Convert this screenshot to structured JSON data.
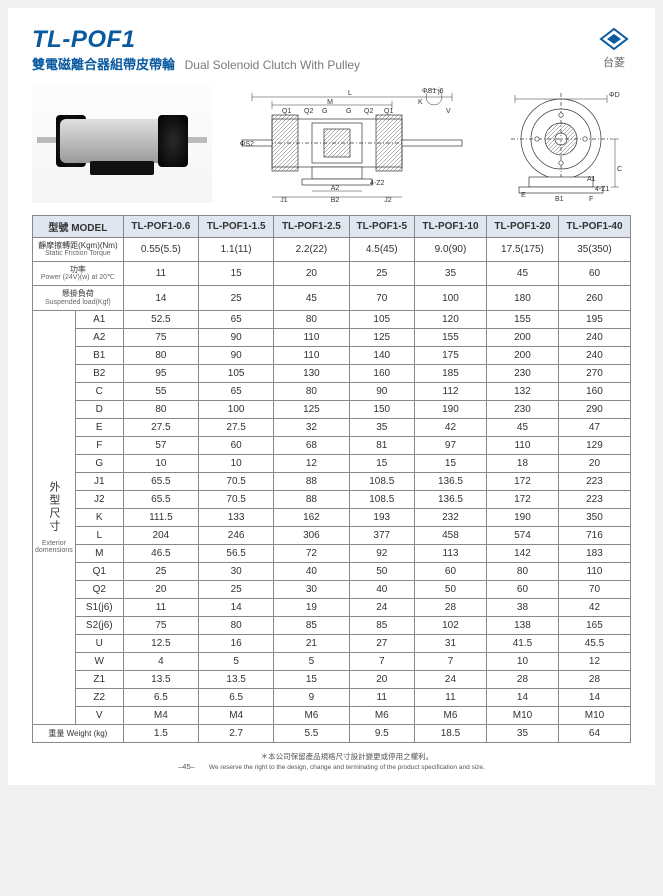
{
  "header": {
    "title": "TL-POF1",
    "subtitle_cn": "雙電磁離合器組帶皮帶輪",
    "subtitle_en": "Dual Solenoid Clutch With Pulley",
    "brand": "台菱"
  },
  "table": {
    "model_label": "型號 MODEL",
    "models": [
      "TL-POF1-0.6",
      "TL-POF1-1.5",
      "TL-POF1-2.5",
      "TL-POF1-5",
      "TL-POF1-10",
      "TL-POF1-20",
      "TL-POF1-40"
    ],
    "spec_rows": [
      {
        "cn": "靜摩擦轉距(Kgm)(Nm)",
        "en": "Static Friction Torque",
        "vals": [
          "0.55(5.5)",
          "1.1(11)",
          "2.2(22)",
          "4.5(45)",
          "9.0(90)",
          "17.5(175)",
          "35(350)"
        ]
      },
      {
        "cn": "功率",
        "en": "Power (24V)(w) at 20℃",
        "vals": [
          "11",
          "15",
          "20",
          "25",
          "35",
          "45",
          "60"
        ]
      },
      {
        "cn": "懸掛負荷",
        "en": "Suspended load(Kgf)",
        "vals": [
          "14",
          "25",
          "45",
          "70",
          "100",
          "180",
          "260"
        ]
      }
    ],
    "dim_group_cn": "外型尺寸",
    "dim_group_en": "Exterior domensions",
    "dim_rows": [
      {
        "k": "A1",
        "v": [
          "52.5",
          "65",
          "80",
          "105",
          "120",
          "155",
          "195"
        ]
      },
      {
        "k": "A2",
        "v": [
          "75",
          "90",
          "110",
          "125",
          "155",
          "200",
          "240"
        ]
      },
      {
        "k": "B1",
        "v": [
          "80",
          "90",
          "110",
          "140",
          "175",
          "200",
          "240"
        ]
      },
      {
        "k": "B2",
        "v": [
          "95",
          "105",
          "130",
          "160",
          "185",
          "230",
          "270"
        ]
      },
      {
        "k": "C",
        "v": [
          "55",
          "65",
          "80",
          "90",
          "112",
          "132",
          "160"
        ]
      },
      {
        "k": "D",
        "v": [
          "80",
          "100",
          "125",
          "150",
          "190",
          "230",
          "290"
        ]
      },
      {
        "k": "E",
        "v": [
          "27.5",
          "27.5",
          "32",
          "35",
          "42",
          "45",
          "47"
        ]
      },
      {
        "k": "F",
        "v": [
          "57",
          "60",
          "68",
          "81",
          "97",
          "110",
          "129"
        ]
      },
      {
        "k": "G",
        "v": [
          "10",
          "10",
          "12",
          "15",
          "15",
          "18",
          "20"
        ]
      },
      {
        "k": "J1",
        "v": [
          "65.5",
          "70.5",
          "88",
          "108.5",
          "136.5",
          "172",
          "223"
        ]
      },
      {
        "k": "J2",
        "v": [
          "65.5",
          "70.5",
          "88",
          "108.5",
          "136.5",
          "172",
          "223"
        ]
      },
      {
        "k": "K",
        "v": [
          "111.5",
          "133",
          "162",
          "193",
          "232",
          "190",
          "350"
        ]
      },
      {
        "k": "L",
        "v": [
          "204",
          "246",
          "306",
          "377",
          "458",
          "574",
          "716"
        ]
      },
      {
        "k": "M",
        "v": [
          "46.5",
          "56.5",
          "72",
          "92",
          "113",
          "142",
          "183"
        ]
      },
      {
        "k": "Q1",
        "v": [
          "25",
          "30",
          "40",
          "50",
          "60",
          "80",
          "110"
        ]
      },
      {
        "k": "Q2",
        "v": [
          "20",
          "25",
          "30",
          "40",
          "50",
          "60",
          "70"
        ]
      },
      {
        "k": "S1(j6)",
        "v": [
          "11",
          "14",
          "19",
          "24",
          "28",
          "38",
          "42"
        ]
      },
      {
        "k": "S2(j6)",
        "v": [
          "75",
          "80",
          "85",
          "85",
          "102",
          "138",
          "165"
        ]
      },
      {
        "k": "U",
        "v": [
          "12.5",
          "16",
          "21",
          "27",
          "31",
          "41.5",
          "45.5"
        ]
      },
      {
        "k": "W",
        "v": [
          "4",
          "5",
          "5",
          "7",
          "7",
          "10",
          "12"
        ]
      },
      {
        "k": "Z1",
        "v": [
          "13.5",
          "13.5",
          "15",
          "20",
          "24",
          "28",
          "28"
        ]
      },
      {
        "k": "Z2",
        "v": [
          "6.5",
          "6.5",
          "9",
          "11",
          "11",
          "14",
          "14"
        ]
      },
      {
        "k": "V",
        "v": [
          "M4",
          "M4",
          "M6",
          "M6",
          "M6",
          "M10",
          "M10"
        ]
      }
    ],
    "weight_cn": "重量 Weight (kg)",
    "weight_vals": [
      "1.5",
      "2.7",
      "5.5",
      "9.5",
      "18.5",
      "35",
      "64"
    ]
  },
  "diagram_labels": {
    "side": [
      "L",
      "M",
      "Q1",
      "Q2",
      "G",
      "G",
      "Q2",
      "Q1",
      "K",
      "ΦS1 j6",
      "V",
      "ΦS2",
      "A2",
      "4-Z2",
      "J1",
      "B2",
      "J2"
    ],
    "front": [
      "ΦD",
      "A1",
      "4-Z1",
      "E",
      "B1",
      "F",
      "C"
    ]
  },
  "footer": {
    "page": "–45–",
    "note_cn": "＊本公司保留產品規格尺寸設計變更或停用之權利。",
    "note_en": "We reserve the right to the design, change and terminating of the product specification and size."
  },
  "colors": {
    "title": "#0a5aa0",
    "border": "#888888",
    "header_bg": "#e9eef5"
  }
}
